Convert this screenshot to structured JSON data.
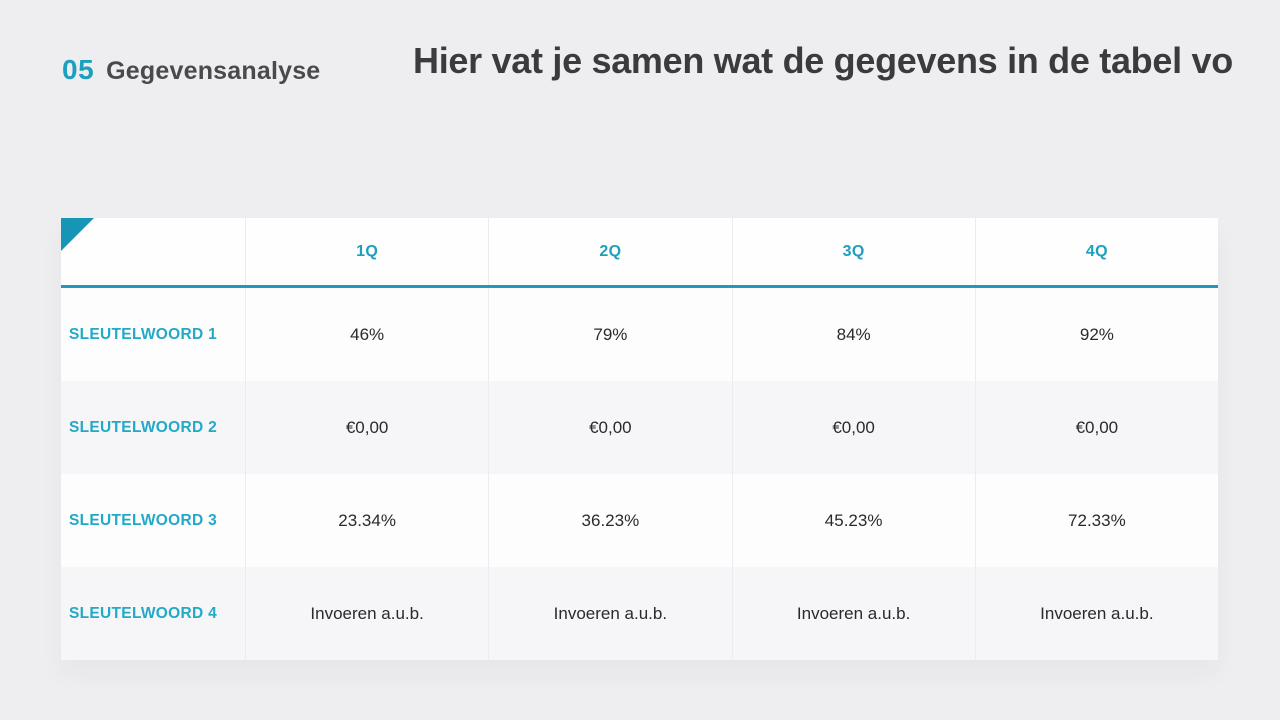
{
  "colors": {
    "background": "#eeedef",
    "accent_text": "#1d9fbe",
    "accent_shape": "#1795b4",
    "title_text": "#3b3b3d",
    "row_alt": "#f6f5f7"
  },
  "header": {
    "section_number": "05",
    "section_label": "Gegevensanalyse",
    "slide_title": "Hier vat je samen wat de gegevens in de tabel vo"
  },
  "table": {
    "columns": [
      "1Q",
      "2Q",
      "3Q",
      "4Q"
    ],
    "rows": [
      {
        "label": "SLEUTELWOORD 1",
        "values": [
          "46%",
          "79%",
          "84%",
          "92%"
        ]
      },
      {
        "label": "SLEUTELWOORD 2",
        "values": [
          "€0,00",
          "€0,00",
          "€0,00",
          "€0,00"
        ]
      },
      {
        "label": "SLEUTELWOORD 3",
        "values": [
          "23.34%",
          "36.23%",
          "45.23%",
          "72.33%"
        ]
      },
      {
        "label": "SLEUTELWOORD 4",
        "values": [
          "Invoeren a.u.b.",
          "Invoeren a.u.b.",
          "Invoeren a.u.b.",
          "Invoeren a.u.b."
        ]
      }
    ]
  }
}
